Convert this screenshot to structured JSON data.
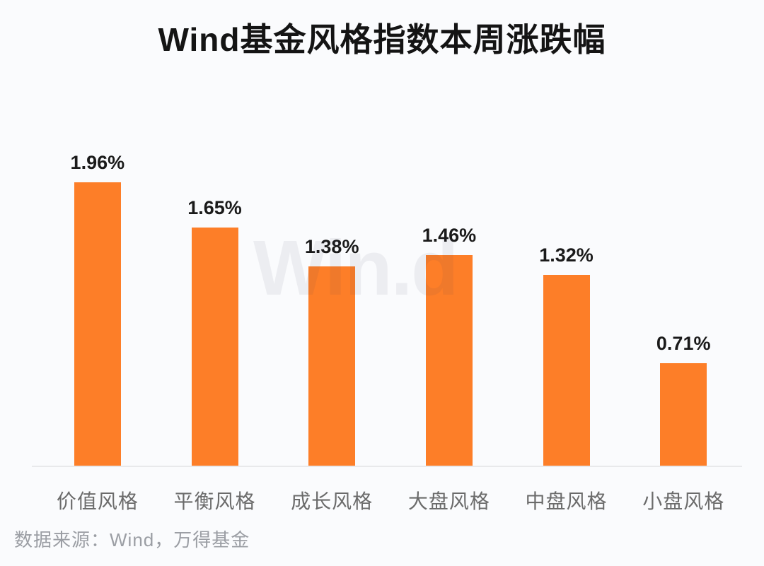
{
  "title": "Wind基金风格指数本周涨跌幅",
  "watermark_text": "Win.d",
  "source_text": "数据来源：Wind，万得基金",
  "colors": {
    "bar": "#fd7e28",
    "background": "#fafbfd",
    "axis_line": "#e8e9eb",
    "title_text": "#141414",
    "value_label_text": "#1a1a1a",
    "category_label_text": "#6b6b6b",
    "source_text_color": "#9b9ea4"
  },
  "chart_data": {
    "type": "bar",
    "title": "Wind基金风格指数本周涨跌幅",
    "categories": [
      "价值风格",
      "平衡风格",
      "成长风格",
      "大盘风格",
      "中盘风格",
      "小盘风格"
    ],
    "values": [
      1.96,
      1.65,
      1.38,
      1.46,
      1.32,
      0.71
    ],
    "value_labels": [
      "1.96%",
      "1.65%",
      "1.38%",
      "1.46%",
      "1.32%",
      "0.71%"
    ],
    "unit": "%",
    "xlabel": "",
    "ylabel": "",
    "ylim": [
      0,
      2.2
    ],
    "grid": false,
    "legend": "none",
    "bar_color": "#fd7e28"
  }
}
